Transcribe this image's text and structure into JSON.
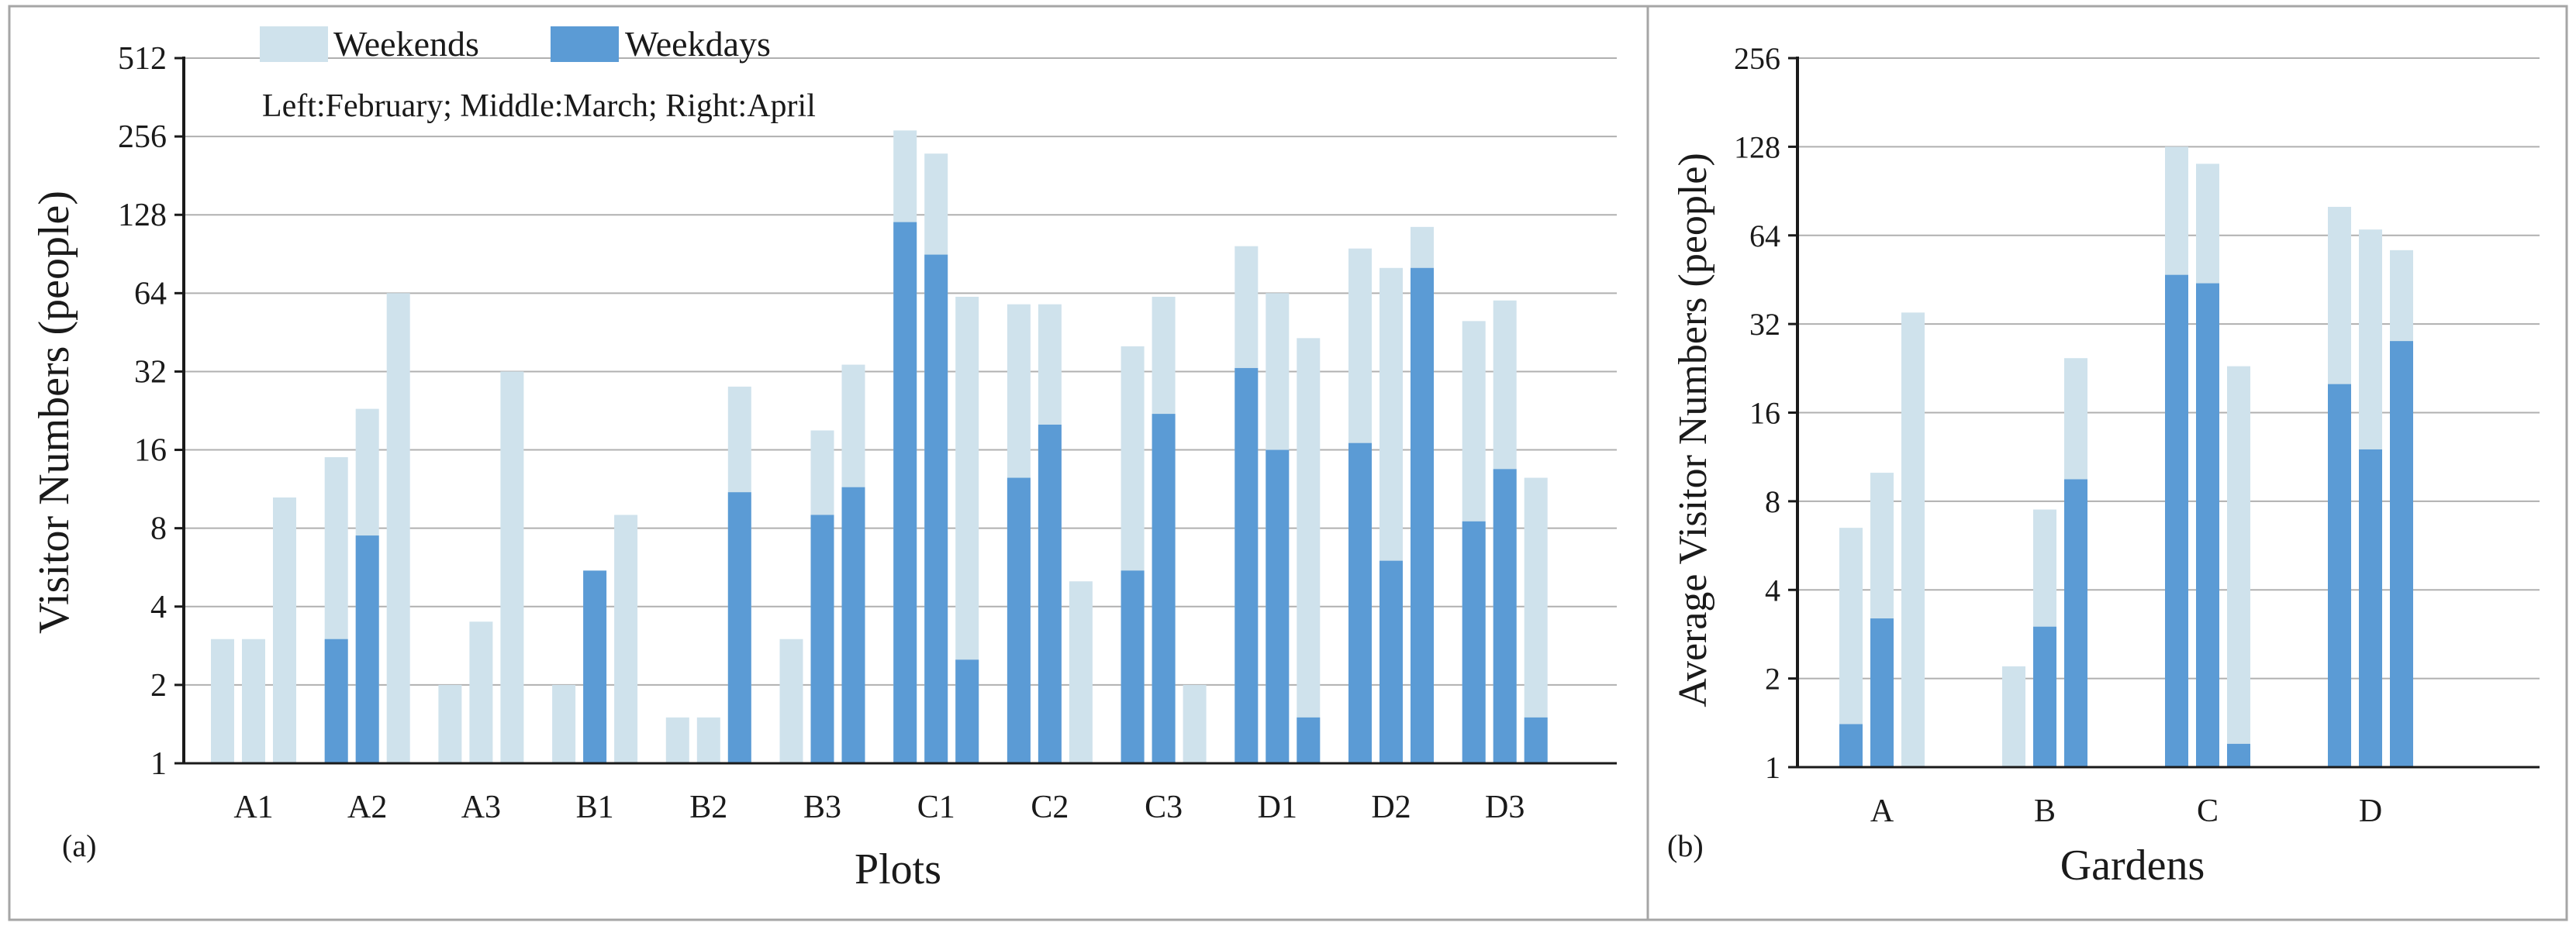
{
  "colors": {
    "weekends": "#cfe2ec",
    "weekdays": "#5b9bd5",
    "gridline": "#b0b0b0",
    "axis": "#1a1a1a",
    "frame": "#a6a6a6"
  },
  "legend": {
    "weekends_label": "Weekends",
    "weekdays_label": "Weekdays"
  },
  "annotation": "Left:February; Middle:March; Right:April",
  "chart_data": [
    {
      "panel_label": "(a)",
      "type": "bar",
      "subtype": "overlapping-stacked",
      "y_scale": "log2",
      "title": "",
      "xlabel": "Plots",
      "ylabel": "Visitor Numbers (people)",
      "ylim": [
        1,
        512
      ],
      "yticks": [
        "1",
        "2",
        "4",
        "8",
        "16",
        "32",
        "64",
        "128",
        "256",
        "512"
      ],
      "grid": true,
      "categories": [
        "A1",
        "A2",
        "A3",
        "B1",
        "B2",
        "B3",
        "C1",
        "C2",
        "C3",
        "D1",
        "D2",
        "D3"
      ],
      "months": [
        "February",
        "March",
        "April"
      ],
      "series": [
        {
          "name": "Weekends",
          "values": [
            [
              3,
              3,
              10.5
            ],
            [
              15,
              23,
              64
            ],
            [
              2,
              3.5,
              32
            ],
            [
              2,
              1.5,
              9
            ],
            [
              1.5,
              1.5,
              28
            ],
            [
              3,
              19,
              34
            ],
            [
              270,
              220,
              62
            ],
            [
              58,
              58,
              5
            ],
            [
              40,
              62,
              2
            ],
            [
              97,
              64,
              43
            ],
            [
              95,
              80,
              115
            ],
            [
              50,
              60,
              12.5
            ]
          ]
        },
        {
          "name": "Weekdays",
          "values": [
            [
              0,
              0,
              0
            ],
            [
              3,
              7.5,
              0
            ],
            [
              0,
              0,
              0
            ],
            [
              0,
              5.5,
              0
            ],
            [
              0,
              0,
              11
            ],
            [
              0,
              9,
              11.5
            ],
            [
              120,
              90,
              2.5
            ],
            [
              12.5,
              20,
              0
            ],
            [
              5.5,
              22,
              0
            ],
            [
              33,
              16,
              1.5
            ],
            [
              17,
              6,
              80
            ],
            [
              8.5,
              13.5,
              1.5
            ]
          ]
        }
      ]
    },
    {
      "panel_label": "(b)",
      "type": "bar",
      "subtype": "overlapping-stacked",
      "y_scale": "log2",
      "title": "",
      "xlabel": "Gardens",
      "ylabel": "Average Visitor Numbers (people)",
      "ylim": [
        1,
        256
      ],
      "yticks": [
        "1",
        "2",
        "4",
        "8",
        "16",
        "32",
        "64",
        "128",
        "256"
      ],
      "grid": true,
      "categories": [
        "A",
        "B",
        "C",
        "D"
      ],
      "months": [
        "February",
        "March",
        "April"
      ],
      "series": [
        {
          "name": "Weekends",
          "values": [
            [
              6.5,
              10,
              35
            ],
            [
              2.2,
              7.5,
              24.5
            ],
            [
              128,
              112,
              23
            ],
            [
              80,
              67,
              57
            ]
          ]
        },
        {
          "name": "Weekdays",
          "values": [
            [
              1.4,
              3.2,
              0
            ],
            [
              0,
              3,
              9.5
            ],
            [
              47,
              44,
              1.2
            ],
            [
              20,
              12,
              28
            ]
          ]
        }
      ]
    }
  ]
}
